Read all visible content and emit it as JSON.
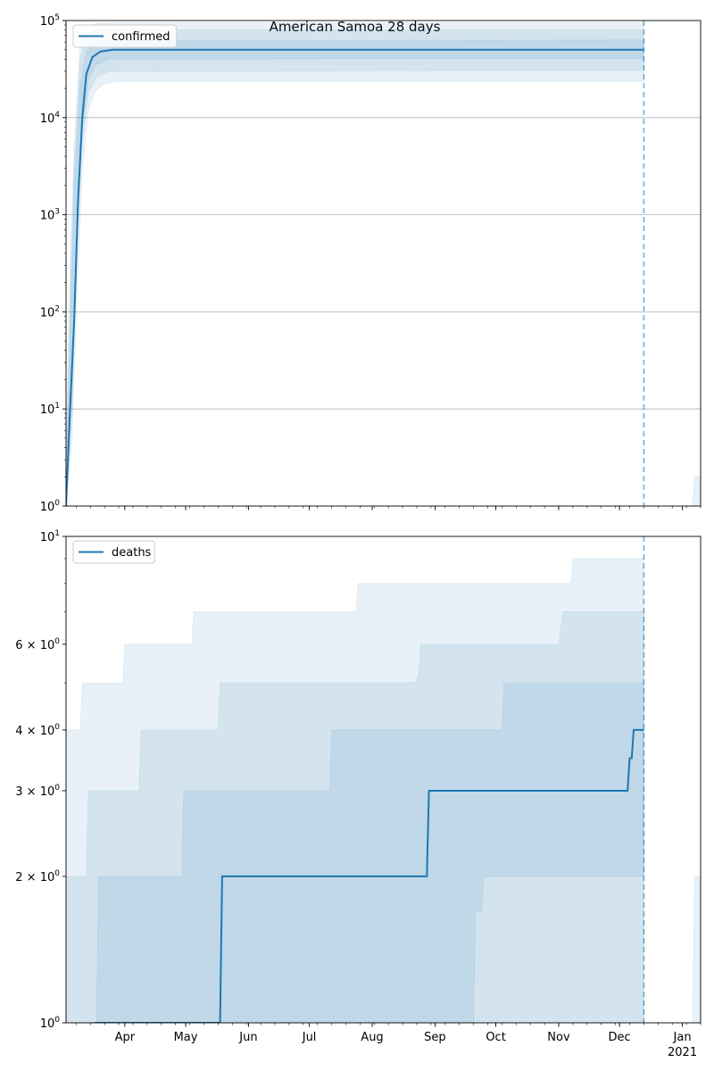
{
  "figure": {
    "title": "American Samoa 28 days"
  },
  "chart_data": [
    {
      "type": "line",
      "scale": "log",
      "ylim": [
        1,
        100000
      ],
      "xlim": [
        "2020-03-03",
        "2021-01-10"
      ],
      "cutoff": "2020-12-13",
      "grid": "y-major",
      "legend": {
        "position": "upper-left",
        "entries": [
          "confirmed"
        ]
      },
      "yticks": [
        {
          "v": 1,
          "base": "10",
          "exp": "0"
        },
        {
          "v": 10,
          "base": "10",
          "exp": "1"
        },
        {
          "v": 100,
          "base": "10",
          "exp": "2"
        },
        {
          "v": 1000,
          "base": "10",
          "exp": "3"
        },
        {
          "v": 10000,
          "base": "10",
          "exp": "4"
        },
        {
          "v": 100000,
          "base": "10",
          "exp": "5"
        }
      ],
      "series": [
        {
          "name": "confirmed",
          "color": "#1f77b4",
          "points": [
            [
              "2020-03-03",
              1
            ],
            [
              "2020-03-05",
              10
            ],
            [
              "2020-03-07",
              80
            ],
            [
              "2020-03-09",
              1500
            ],
            [
              "2020-03-11",
              10000
            ],
            [
              "2020-03-13",
              28000
            ],
            [
              "2020-03-16",
              42000
            ],
            [
              "2020-03-20",
              48000
            ],
            [
              "2020-03-26",
              50000
            ],
            [
              "2020-04-10",
              50000
            ],
            [
              "2020-12-13",
              50000
            ]
          ]
        }
      ],
      "bands": [
        {
          "opacity": 0.1,
          "upper": [
            [
              "2020-03-03",
              4
            ],
            [
              "2020-03-05",
              300
            ],
            [
              "2020-03-07",
              5000
            ],
            [
              "2020-03-10",
              60000
            ],
            [
              "2020-03-13",
              85000
            ],
            [
              "2020-03-17",
              92000
            ],
            [
              "2020-03-25",
              95000
            ],
            [
              "2020-12-13",
              95000
            ]
          ],
          "lower": [
            [
              "2020-03-03",
              1
            ],
            [
              "2020-03-06",
              5
            ],
            [
              "2020-03-08",
              100
            ],
            [
              "2020-03-11",
              3000
            ],
            [
              "2020-03-14",
              12000
            ],
            [
              "2020-03-17",
              18000
            ],
            [
              "2020-03-21",
              22000
            ],
            [
              "2020-03-28",
              23500
            ],
            [
              "2020-12-13",
              23500
            ]
          ]
        },
        {
          "opacity": 0.1,
          "upper": [
            [
              "2020-03-03",
              2
            ],
            [
              "2020-03-05",
              120
            ],
            [
              "2020-03-07",
              3000
            ],
            [
              "2020-03-10",
              40000
            ],
            [
              "2020-03-13",
              70000
            ],
            [
              "2020-03-18",
              80000
            ],
            [
              "2020-12-13",
              80000
            ]
          ],
          "lower": [
            [
              "2020-03-03",
              1
            ],
            [
              "2020-03-06",
              10
            ],
            [
              "2020-03-08",
              300
            ],
            [
              "2020-03-11",
              6000
            ],
            [
              "2020-03-14",
              18000
            ],
            [
              "2020-03-18",
              26000
            ],
            [
              "2020-03-24",
              30000
            ],
            [
              "2020-12-13",
              30500
            ]
          ]
        },
        {
          "opacity": 0.1,
          "upper": [
            [
              "2020-03-03",
              1.5
            ],
            [
              "2020-03-05",
              50
            ],
            [
              "2020-03-07",
              1800
            ],
            [
              "2020-03-10",
              22000
            ],
            [
              "2020-03-13",
              48000
            ],
            [
              "2020-03-18",
              62000
            ],
            [
              "2020-12-13",
              63000
            ]
          ],
          "lower": [
            [
              "2020-03-03",
              1
            ],
            [
              "2020-03-06",
              15
            ],
            [
              "2020-03-08",
              500
            ],
            [
              "2020-03-11",
              8000
            ],
            [
              "2020-03-14",
              25000
            ],
            [
              "2020-03-18",
              35000
            ],
            [
              "2020-03-24",
              40000
            ],
            [
              "2020-12-13",
              40500
            ]
          ]
        },
        {
          "opacity": 0.1,
          "upper": [
            [
              "2021-01-06",
              1
            ],
            [
              "2021-01-07",
              2
            ],
            [
              "2021-01-10",
              2
            ]
          ],
          "lower": [
            [
              "2021-01-06",
              1
            ],
            [
              "2021-01-10",
              1
            ]
          ]
        }
      ]
    },
    {
      "type": "line",
      "scale": "log",
      "ylim": [
        1,
        10
      ],
      "xlim": [
        "2020-03-03",
        "2021-01-10"
      ],
      "cutoff": "2020-12-13",
      "grid": "none",
      "legend": {
        "position": "upper-left",
        "entries": [
          "deaths"
        ]
      },
      "yticks": [
        {
          "v": 1,
          "base": "10",
          "exp": "0"
        },
        {
          "v": 2,
          "base": "2 × 10",
          "exp": "0"
        },
        {
          "v": 3,
          "base": "3 × 10",
          "exp": "0"
        },
        {
          "v": 4,
          "base": "4 × 10",
          "exp": "0"
        },
        {
          "v": 6,
          "base": "6 × 10",
          "exp": "0"
        },
        {
          "v": 10,
          "base": "10",
          "exp": "1"
        }
      ],
      "minor_ticks": [
        5,
        7,
        8,
        9
      ],
      "xticks": [
        {
          "date": "2020-04-01",
          "label": "Apr"
        },
        {
          "date": "2020-05-01",
          "label": "May"
        },
        {
          "date": "2020-06-01",
          "label": "Jun"
        },
        {
          "date": "2020-07-01",
          "label": "Jul"
        },
        {
          "date": "2020-08-01",
          "label": "Aug"
        },
        {
          "date": "2020-09-01",
          "label": "Sep"
        },
        {
          "date": "2020-10-01",
          "label": "Oct"
        },
        {
          "date": "2020-11-01",
          "label": "Nov"
        },
        {
          "date": "2020-12-01",
          "label": "Dec"
        },
        {
          "date": "2021-01-01",
          "label": "Jan",
          "sublabel": "2021"
        }
      ],
      "series": [
        {
          "name": "deaths",
          "color": "#1f77b4",
          "points": [
            [
              "2020-03-17",
              1
            ],
            [
              "2020-05-18",
              1
            ],
            [
              "2020-05-19",
              2
            ],
            [
              "2020-08-28",
              2
            ],
            [
              "2020-08-29",
              3
            ],
            [
              "2020-12-05",
              3
            ],
            [
              "2020-12-06",
              3.5
            ],
            [
              "2020-12-07",
              3.5
            ],
            [
              "2020-12-08",
              4
            ],
            [
              "2020-12-13",
              4
            ]
          ]
        }
      ],
      "bands": [
        {
          "opacity": 0.1,
          "upper": [
            [
              "2020-03-03",
              4
            ],
            [
              "2020-03-10",
              4
            ],
            [
              "2020-03-11",
              5
            ],
            [
              "2020-03-31",
              5
            ],
            [
              "2020-04-01",
              6
            ],
            [
              "2020-04-28",
              6
            ],
            [
              "2020-05-04",
              6
            ],
            [
              "2020-05-05",
              7
            ],
            [
              "2020-07-19",
              7
            ],
            [
              "2020-07-24",
              7
            ],
            [
              "2020-07-25",
              8
            ],
            [
              "2020-10-25",
              8
            ],
            [
              "2020-11-07",
              8
            ],
            [
              "2020-11-08",
              9
            ],
            [
              "2020-12-13",
              9
            ]
          ],
          "lower": [
            [
              "2020-03-03",
              1
            ],
            [
              "2020-12-13",
              1
            ]
          ]
        },
        {
          "opacity": 0.1,
          "upper": [
            [
              "2020-03-03",
              2
            ],
            [
              "2020-03-13",
              2
            ],
            [
              "2020-03-14",
              3
            ],
            [
              "2020-04-08",
              3
            ],
            [
              "2020-04-09",
              4
            ],
            [
              "2020-05-17",
              4
            ],
            [
              "2020-05-18",
              5
            ],
            [
              "2020-08-22",
              5
            ],
            [
              "2020-08-24",
              5.2
            ],
            [
              "2020-08-25",
              6
            ],
            [
              "2020-11-01",
              6
            ],
            [
              "2020-11-03",
              7
            ],
            [
              "2020-12-13",
              7
            ]
          ],
          "lower": [
            [
              "2020-03-03",
              1
            ],
            [
              "2020-09-20",
              1
            ],
            [
              "2020-09-21",
              1.7
            ],
            [
              "2020-09-24",
              1.7
            ],
            [
              "2020-09-25",
              2
            ],
            [
              "2020-12-13",
              2
            ]
          ]
        },
        {
          "opacity": 0.1,
          "upper": [
            [
              "2020-03-03",
              1
            ],
            [
              "2020-03-18",
              1
            ],
            [
              "2020-03-19",
              2
            ],
            [
              "2020-04-29",
              2
            ],
            [
              "2020-04-30",
              3
            ],
            [
              "2020-07-11",
              3
            ],
            [
              "2020-07-12",
              4
            ],
            [
              "2020-10-04",
              4
            ],
            [
              "2020-10-05",
              5
            ],
            [
              "2020-12-13",
              5
            ]
          ],
          "lower": [
            [
              "2020-03-03",
              1
            ],
            [
              "2020-12-13",
              1
            ]
          ]
        },
        {
          "opacity": 0.1,
          "upper": [
            [
              "2021-01-06",
              1
            ],
            [
              "2021-01-07",
              2
            ],
            [
              "2021-01-10",
              2
            ]
          ],
          "lower": [
            [
              "2021-01-06",
              1
            ],
            [
              "2021-01-10",
              1
            ]
          ]
        }
      ]
    }
  ]
}
